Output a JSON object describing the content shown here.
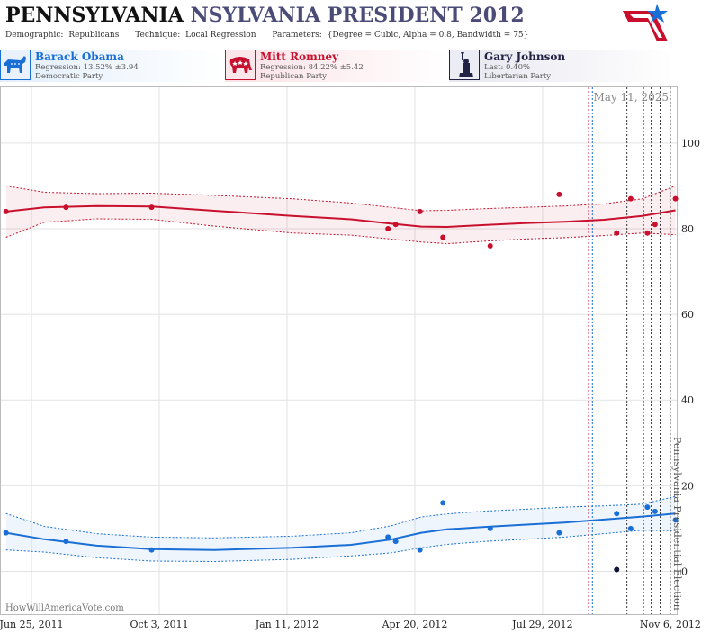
{
  "header": {
    "title_part1": "PENNSYLVANIA",
    "title_part2": "NSYLVANIA PRESIDENT 2012",
    "demographic_label": "Demographic:",
    "demographic_value": "Republicans",
    "technique_label": "Technique:",
    "technique_value": "Local Regression",
    "parameters_label": "Parameters:",
    "parameters_value": "{Degree = Cubic, Alpha = 0.8, Bandwidth = 75}"
  },
  "candidates": [
    {
      "name": "Barack Obama",
      "line2": "Regression: 13.52% ±3.94",
      "line3": "Democratic Party",
      "color": "#1a6fd6",
      "icon": "donkey-icon"
    },
    {
      "name": "Mitt Romney",
      "line2": "Regression: 84.22% ±5.42",
      "line3": "Republican Party",
      "color": "#c8102e",
      "icon": "elephant-icon"
    },
    {
      "name": "Gary Johnson",
      "line2": "Last: 0.40%",
      "line3": "Libertarian Party",
      "color": "#222244",
      "icon": "statue-of-liberty-icon"
    }
  ],
  "chart": {
    "date_stamp": "May 11, 2025",
    "watermark": "HowWillAmericaVote.com",
    "event_label": "Pennsylvania Presidential Election"
  },
  "chart_data": {
    "type": "scatter",
    "x_type": "date",
    "xlim": [
      "2011-06-01",
      "2012-11-11"
    ],
    "ylim": [
      -10,
      113
    ],
    "y_ticks": [
      0,
      20,
      40,
      60,
      80,
      100
    ],
    "x_ticks": [
      "2011-06-25",
      "2011-10-03",
      "2012-01-11",
      "2012-04-20",
      "2012-07-29",
      "2012-11-06"
    ],
    "x_tick_labels": [
      "Jun 25, 2011",
      "Oct 3, 2011",
      "Jan 11, 2012",
      "Apr 20, 2012",
      "Jul 29, 2012",
      "Nov 6, 2012"
    ],
    "grid": true,
    "series": [
      {
        "name": "Mitt Romney",
        "color": "#c8102e",
        "points": [
          [
            "2011-06-05",
            84
          ],
          [
            "2011-07-22",
            85
          ],
          [
            "2011-09-27",
            85
          ],
          [
            "2012-03-30",
            80
          ],
          [
            "2012-04-05",
            81
          ],
          [
            "2012-04-24",
            84
          ],
          [
            "2012-05-12",
            78
          ],
          [
            "2012-06-18",
            76
          ],
          [
            "2012-08-11",
            88
          ],
          [
            "2012-09-25",
            79
          ],
          [
            "2012-10-06",
            87
          ],
          [
            "2012-10-19",
            79
          ],
          [
            "2012-10-25",
            81
          ],
          [
            "2012-11-10",
            87
          ]
        ],
        "trend": [
          [
            "2011-06-05",
            84
          ],
          [
            "2011-07-05",
            85
          ],
          [
            "2011-08-15",
            85.3
          ],
          [
            "2011-09-27",
            85.2
          ],
          [
            "2011-11-15",
            84.2
          ],
          [
            "2012-01-15",
            83
          ],
          [
            "2012-03-01",
            82.2
          ],
          [
            "2012-04-01",
            81.2
          ],
          [
            "2012-04-25",
            80.5
          ],
          [
            "2012-05-15",
            80.4
          ],
          [
            "2012-06-15",
            80.9
          ],
          [
            "2012-07-15",
            81.3
          ],
          [
            "2012-08-15",
            81.6
          ],
          [
            "2012-09-15",
            82.1
          ],
          [
            "2012-10-15",
            83
          ],
          [
            "2012-11-10",
            84.3
          ]
        ],
        "upper": [
          [
            "2011-06-05",
            90
          ],
          [
            "2011-07-05",
            88.5
          ],
          [
            "2011-08-15",
            88.2
          ],
          [
            "2011-09-27",
            88.3
          ],
          [
            "2011-11-15",
            87.8
          ],
          [
            "2012-01-15",
            87
          ],
          [
            "2012-03-01",
            86
          ],
          [
            "2012-04-01",
            85
          ],
          [
            "2012-04-25",
            84.2
          ],
          [
            "2012-05-15",
            84.3
          ],
          [
            "2012-06-15",
            84.7
          ],
          [
            "2012-07-15",
            85
          ],
          [
            "2012-08-15",
            85.3
          ],
          [
            "2012-09-15",
            85.8
          ],
          [
            "2012-10-15",
            87
          ],
          [
            "2012-11-10",
            90
          ]
        ],
        "lower": [
          [
            "2011-06-05",
            78
          ],
          [
            "2011-07-05",
            81.5
          ],
          [
            "2011-08-15",
            82.3
          ],
          [
            "2011-09-27",
            82.2
          ],
          [
            "2011-11-15",
            80.6
          ],
          [
            "2012-01-15",
            79
          ],
          [
            "2012-03-01",
            78.5
          ],
          [
            "2012-04-01",
            77.6
          ],
          [
            "2012-04-25",
            76.9
          ],
          [
            "2012-05-15",
            76.5
          ],
          [
            "2012-06-15",
            77.1
          ],
          [
            "2012-07-15",
            77.6
          ],
          [
            "2012-08-15",
            77.9
          ],
          [
            "2012-09-15",
            78.4
          ],
          [
            "2012-10-15",
            79
          ],
          [
            "2012-11-10",
            78.6
          ]
        ]
      },
      {
        "name": "Barack Obama",
        "color": "#1a6fd6",
        "points": [
          [
            "2011-06-05",
            9
          ],
          [
            "2011-07-22",
            7
          ],
          [
            "2011-09-27",
            5
          ],
          [
            "2012-03-30",
            8
          ],
          [
            "2012-04-05",
            7
          ],
          [
            "2012-04-24",
            5
          ],
          [
            "2012-05-12",
            16
          ],
          [
            "2012-06-18",
            10
          ],
          [
            "2012-08-11",
            9
          ],
          [
            "2012-09-25",
            13.5
          ],
          [
            "2012-10-06",
            10
          ],
          [
            "2012-10-19",
            15
          ],
          [
            "2012-10-25",
            14
          ],
          [
            "2012-11-10",
            12
          ]
        ],
        "trend": [
          [
            "2011-06-05",
            9
          ],
          [
            "2011-07-05",
            7.5
          ],
          [
            "2011-08-15",
            6
          ],
          [
            "2011-09-27",
            5.2
          ],
          [
            "2011-11-15",
            5
          ],
          [
            "2012-01-15",
            5.5
          ],
          [
            "2012-03-01",
            6.2
          ],
          [
            "2012-04-01",
            7.4
          ],
          [
            "2012-04-25",
            9
          ],
          [
            "2012-05-15",
            9.8
          ],
          [
            "2012-06-15",
            10.4
          ],
          [
            "2012-07-15",
            10.9
          ],
          [
            "2012-08-15",
            11.4
          ],
          [
            "2012-09-15",
            12.1
          ],
          [
            "2012-10-15",
            12.8
          ],
          [
            "2012-11-10",
            13.5
          ]
        ],
        "upper": [
          [
            "2011-06-05",
            13.5
          ],
          [
            "2011-07-05",
            10.5
          ],
          [
            "2011-08-15",
            8.8
          ],
          [
            "2011-09-27",
            8
          ],
          [
            "2011-11-15",
            7.8
          ],
          [
            "2012-01-15",
            8.2
          ],
          [
            "2012-03-01",
            9
          ],
          [
            "2012-04-01",
            10.6
          ],
          [
            "2012-04-25",
            12.7
          ],
          [
            "2012-05-15",
            13.4
          ],
          [
            "2012-06-15",
            14.1
          ],
          [
            "2012-07-15",
            14.5
          ],
          [
            "2012-08-15",
            15
          ],
          [
            "2012-09-15",
            15.3
          ],
          [
            "2012-10-15",
            15.7
          ],
          [
            "2012-11-10",
            17.5
          ]
        ],
        "lower": [
          [
            "2011-06-05",
            5
          ],
          [
            "2011-07-05",
            4.5
          ],
          [
            "2011-08-15",
            3.2
          ],
          [
            "2011-09-27",
            2.4
          ],
          [
            "2011-11-15",
            2.3
          ],
          [
            "2012-01-15",
            2.8
          ],
          [
            "2012-03-01",
            3.6
          ],
          [
            "2012-04-01",
            4.3
          ],
          [
            "2012-04-25",
            5.5
          ],
          [
            "2012-05-15",
            6.3
          ],
          [
            "2012-06-15",
            7
          ],
          [
            "2012-07-15",
            7.5
          ],
          [
            "2012-08-15",
            8
          ],
          [
            "2012-09-15",
            8.8
          ],
          [
            "2012-10-15",
            9.6
          ],
          [
            "2012-11-10",
            9.5
          ]
        ]
      },
      {
        "name": "Gary Johnson",
        "color": "#111133",
        "points": [
          [
            "2012-09-25",
            0.4
          ]
        ]
      }
    ],
    "vlines": [
      {
        "x": "2012-09-03",
        "color": "#c8102e"
      },
      {
        "x": "2012-09-06",
        "color": "#1a6fd6"
      },
      {
        "x": "2012-10-03",
        "color": "#333333"
      },
      {
        "x": "2012-10-16",
        "color": "#333333"
      },
      {
        "x": "2012-10-22",
        "color": "#333333"
      },
      {
        "x": "2012-10-29",
        "color": "#333333"
      },
      {
        "x": "2012-11-06",
        "color": "#333333"
      }
    ],
    "event": {
      "x": "2012-11-06"
    }
  }
}
